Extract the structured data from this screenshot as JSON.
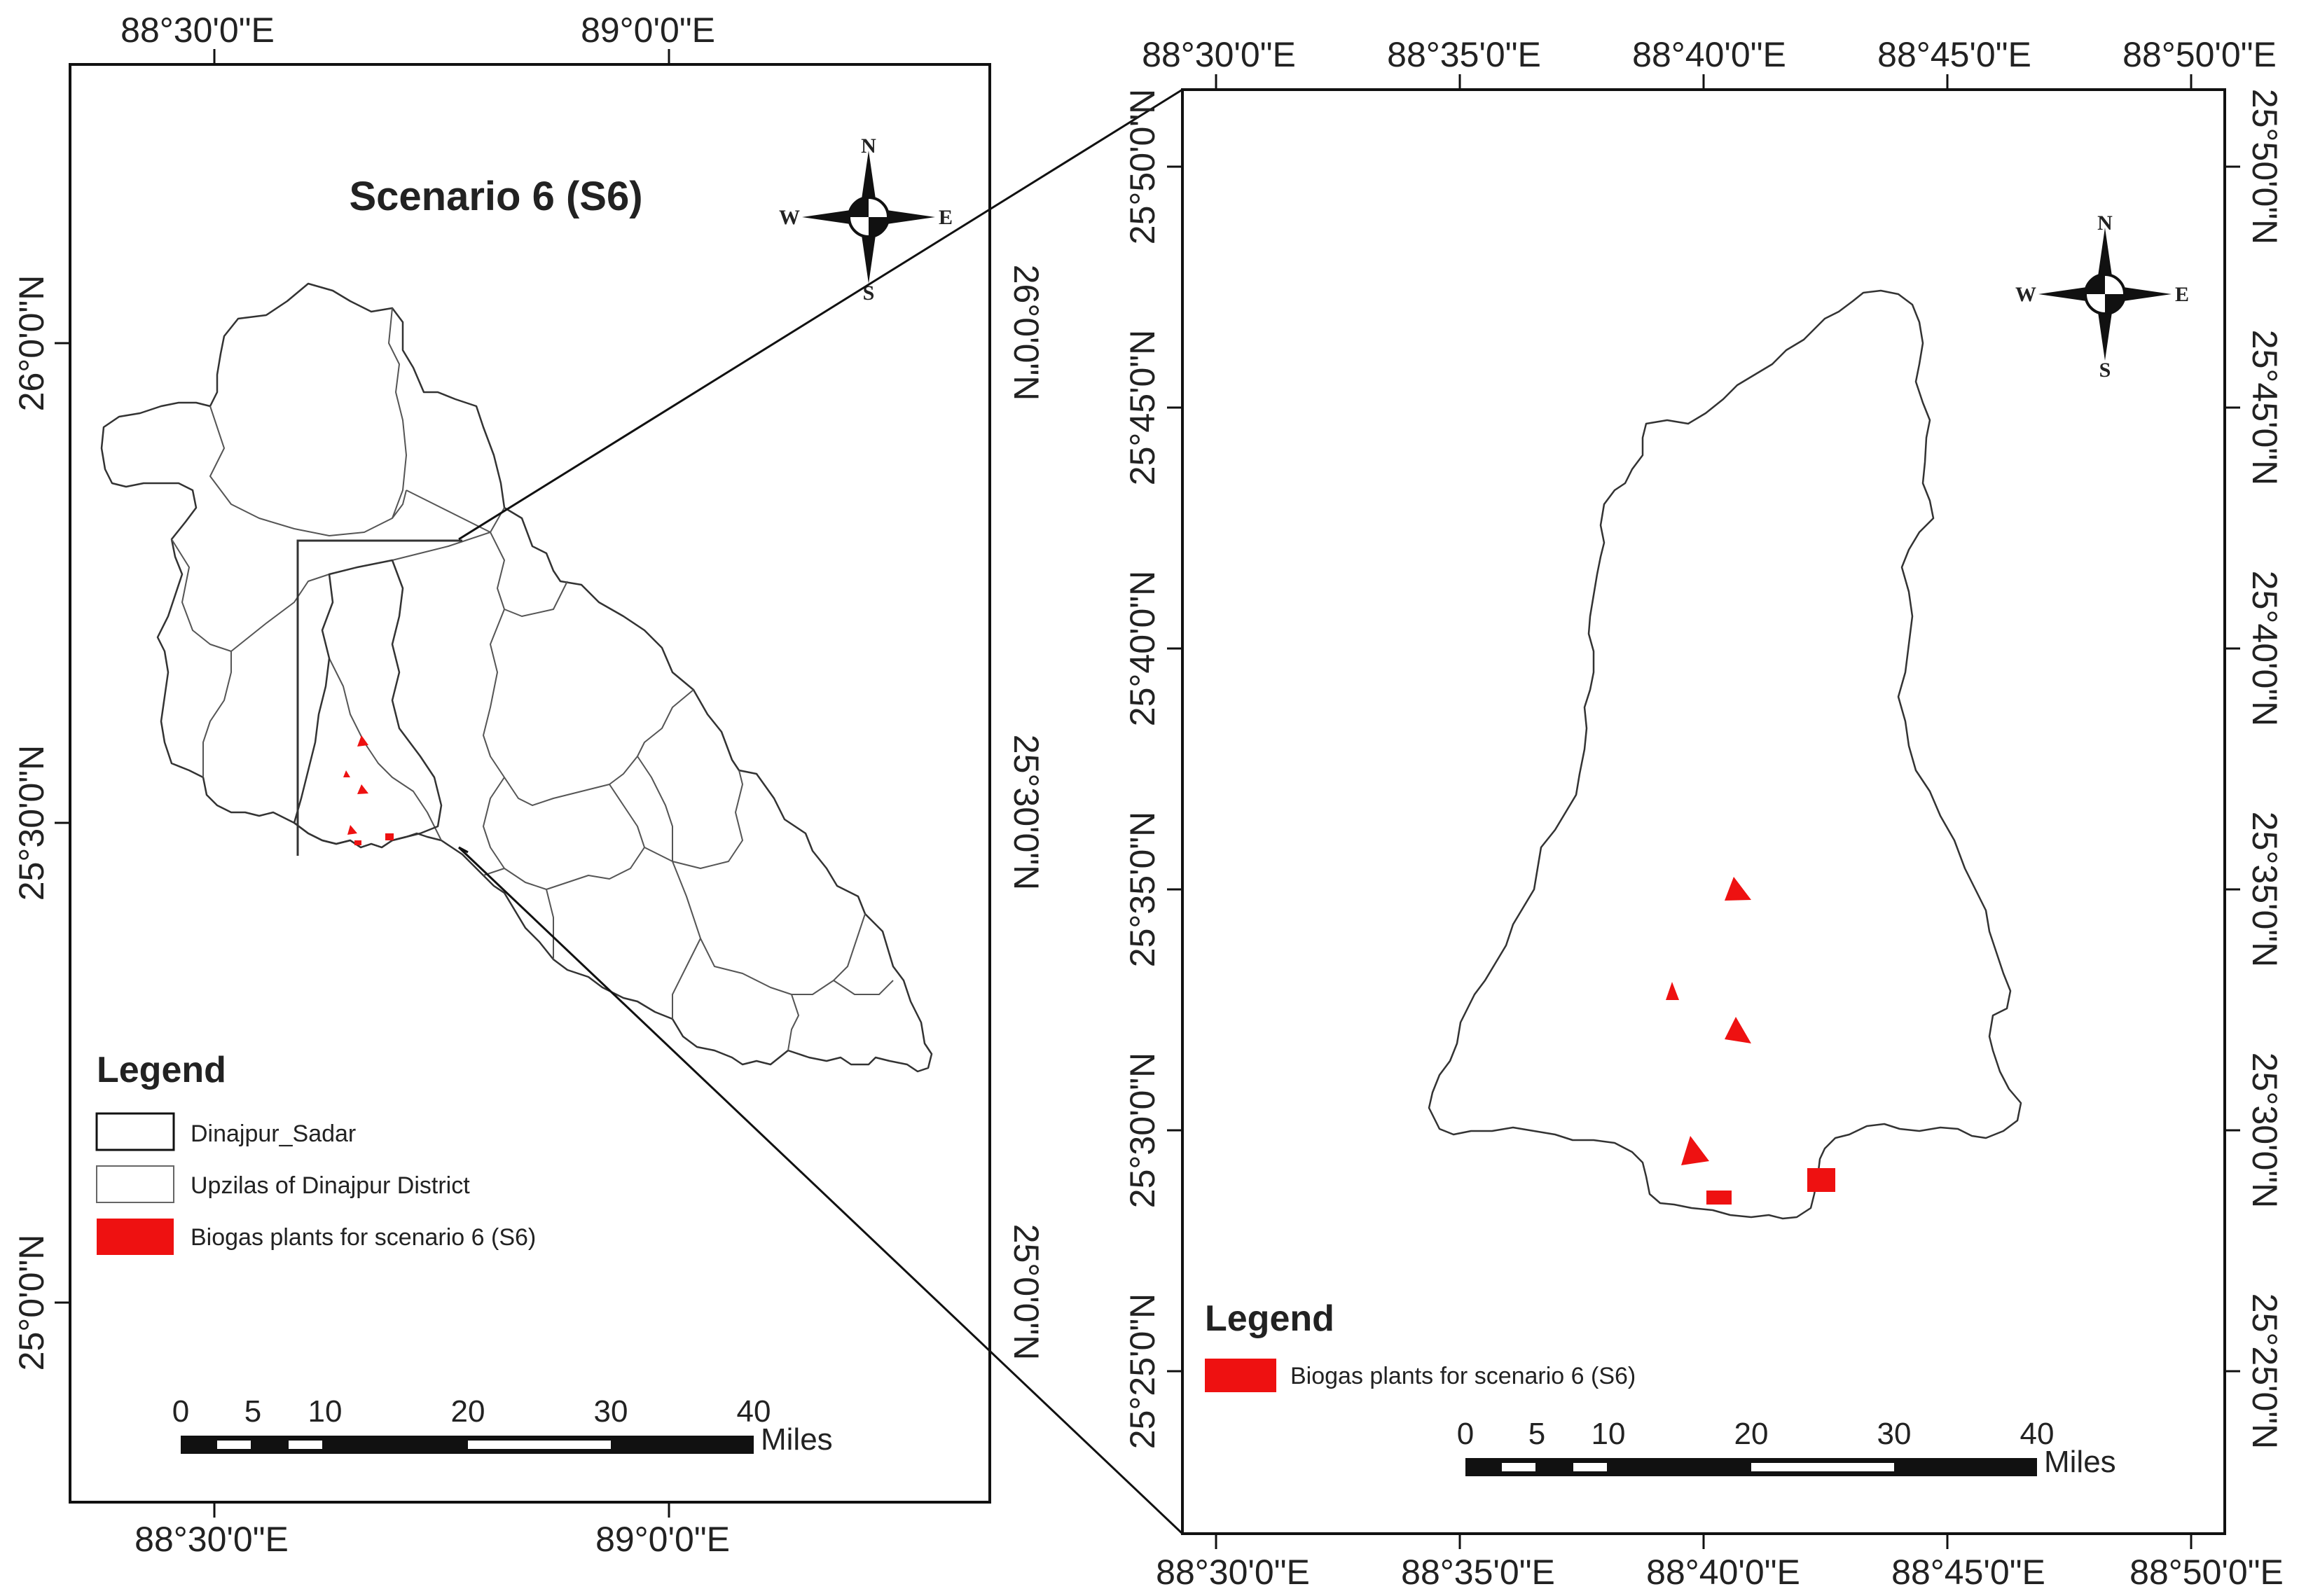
{
  "left_map": {
    "title": "Scenario 6 (S6)",
    "lon_labels": [
      "88°30'0\"E",
      "89°0'0\"E"
    ],
    "lat_labels": [
      "26°0'0\"N",
      "25°30'0\"N",
      "25°0'0\"N"
    ],
    "legend": {
      "title": "Legend",
      "items": [
        {
          "label": "Dinajpur_Sadar",
          "style": "black-outline"
        },
        {
          "label": "Upzilas of Dinajpur District",
          "style": "grey-outline"
        },
        {
          "label": "Biogas plants for scenario 6 (S6)",
          "style": "red-fill"
        }
      ]
    },
    "scale": {
      "ticks": [
        "0",
        "5",
        "10",
        "20",
        "30",
        "40"
      ],
      "unit": "Miles"
    },
    "compass": {
      "n": "N",
      "s": "S",
      "e": "E",
      "w": "W"
    }
  },
  "right_map": {
    "lon_labels": [
      "88°30'0\"E",
      "88°35'0\"E",
      "88°40'0\"E",
      "88°45'0\"E",
      "88°50'0\"E"
    ],
    "lat_labels": [
      "25°50'0\"N",
      "25°45'0\"N",
      "25°40'0\"N",
      "25°35'0\"N",
      "25°30'0\"N",
      "25°25'0\"N"
    ],
    "legend": {
      "title": "Legend",
      "items": [
        {
          "label": "Biogas plants for scenario 6 (S6)",
          "style": "red-fill"
        }
      ]
    },
    "scale": {
      "ticks": [
        "0",
        "5",
        "10",
        "20",
        "30",
        "40"
      ],
      "unit": "Miles"
    },
    "compass": {
      "n": "N",
      "s": "S",
      "e": "E",
      "w": "W"
    }
  },
  "colors": {
    "plant": "#ee1111",
    "frame": "#111111",
    "boundary": "#333333"
  }
}
